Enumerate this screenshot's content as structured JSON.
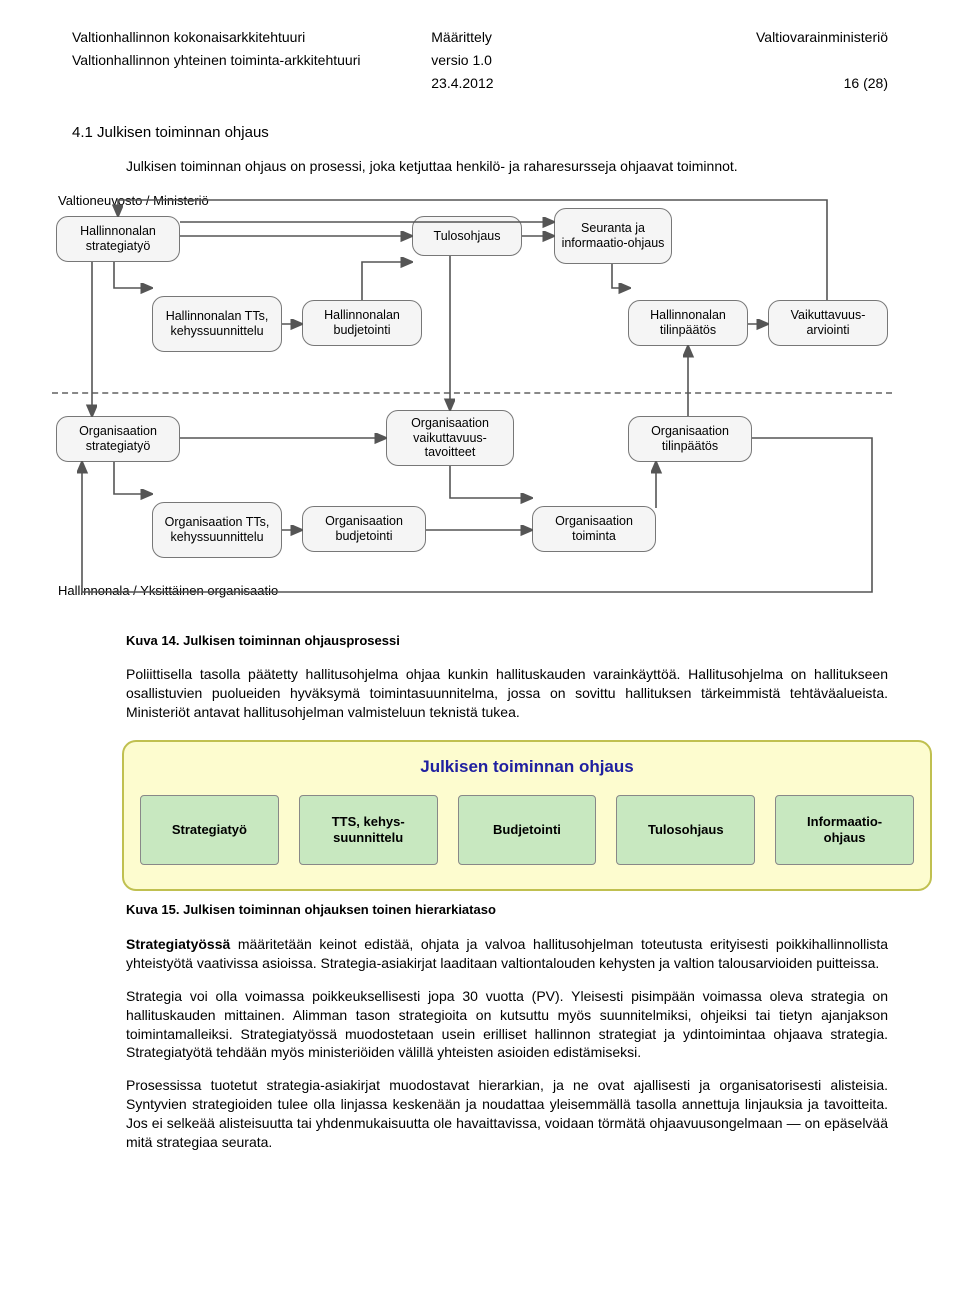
{
  "header": {
    "left1": "Valtionhallinnon kokonaisarkkitehtuuri",
    "left2": "Valtionhallinnon yhteinen toiminta-arkkitehtuuri",
    "mid1": "Määrittely",
    "mid2": "versio 1.0",
    "mid3": "23.4.2012",
    "right1": "Valtiovarainministeriö",
    "right3": "16 (28)"
  },
  "section": {
    "number_title": "4.1 Julkisen toiminnan ohjaus",
    "intro": "Julkisen toiminnan ohjaus on prosessi, joka ketjuttaa henkilö- ja raharesursseja ohjaavat toiminnot.",
    "caption1": "Kuva 14. Julkisen toiminnan ohjausprosessi",
    "para2": "Poliittisella tasolla päätetty hallitusohjelma ohjaa kunkin hallituskauden varainkäyttöä. Hallitusohjelma on hallitukseen osallistuvien puolueiden hyväksymä toimintasuunnitelma, jossa on sovittu hallituksen tärkeimmistä tehtäväalueista. Ministeriöt antavat hallitusohjelman valmisteluun teknistä tukea.",
    "caption2": "Kuva 15. Julkisen toiminnan ohjauksen toinen hierarkiataso",
    "para3": "Strategiatyössä määritetään keinot edistää, ohjata ja valvoa hallitusohjelman toteutusta erityisesti poikkihallinnollista yhteistyötä vaativissa asioissa. Strategia-asiakirjat laaditaan valtiontalouden kehysten ja valtion talousarvioiden puitteissa.",
    "para3_bold": "Strategiatyössä",
    "para4": "Strategia voi olla voimassa poikkeuksellisesti jopa 30 vuotta (PV). Yleisesti pisimpään voimassa oleva strategia on hallituskauden mittainen. Alimman tason strategioita on kutsuttu myös suunnitelmiksi, ohjeiksi tai tietyn ajanjakson toimintamalleiksi. Strategiatyössä muodostetaan usein erilliset hallinnon strategiat ja ydintoimintaa ohjaava strategia. Strategiatyötä tehdään myös ministeriöiden välillä yhteisten asioiden edistämiseksi.",
    "para5": "Prosessissa tuotetut strategia-asiakirjat muodostavat hierarkian, ja ne ovat ajallisesti ja organisatorisesti alisteisia. Syntyvien strategioiden tulee olla linjassa keskenään ja noudattaa yleisemmällä tasolla annettuja linjauksia ja tavoitteita. Jos ei selkeää alisteisuutta tai yhdenmukaisuutta ole havaittavissa, voidaan törmätä ohjaavuusongelmaan — on epäselvää mitä strategiaa seurata."
  },
  "flow": {
    "top_label": "Valtioneuvosto / Ministeriö",
    "bottom_label": "Hallinnonala / Yksittäinen organisaatio",
    "nodes": {
      "ha_strat": "Hallinnonalan strategiatyö",
      "tulosohj": "Tulosohjaus",
      "seuranta": "Seuranta ja informaatio-ohjaus",
      "ha_tts": "Hallinnonalan TTs, kehyssuunnittelu",
      "ha_bud": "Hallinnonalan budjetointi",
      "ha_tp": "Hallinnonalan tilinpäätös",
      "vaik": "Vaikuttavuus-arviointi",
      "org_strat": "Organisaation strategiatyö",
      "org_vaik": "Organisaation vaikuttavuus-tavoitteet",
      "org_tp": "Organisaation tilinpäätös",
      "org_tts": "Organisaation TTs, kehyssuunnittelu",
      "org_bud": "Organisaation budjetointi",
      "org_toim": "Organisaation toiminta"
    },
    "colors": {
      "node_bg": "#f2f2f2",
      "node_border": "#777777",
      "arrow": "#555555",
      "dash": "#888888"
    }
  },
  "panel": {
    "title": "Julkisen toiminnan ohjaus",
    "boxes": [
      "Strategiatyö",
      "TTS, kehys-\nsuunnittelu",
      "Budjetointi",
      "Tulosohjaus",
      "Informaatio-\nohjaus"
    ],
    "colors": {
      "outer_bg": "#fdfccf",
      "outer_border": "#c0c050",
      "box_bg": "#c8e8c0",
      "box_border": "#888888",
      "title_color": "#2020a0"
    }
  }
}
